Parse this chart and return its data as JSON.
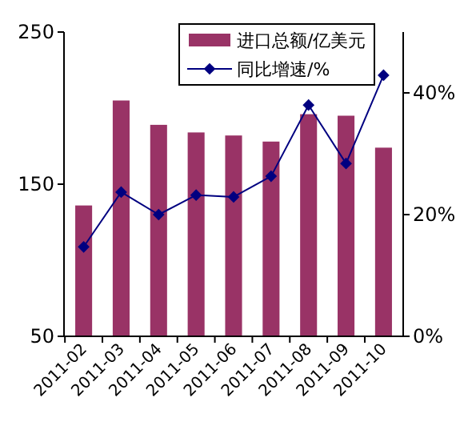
{
  "chart_data": {
    "type": "bar",
    "categories": [
      "2011-02",
      "2011-03",
      "2011-04",
      "2011-05",
      "2011-06",
      "2011-07",
      "2011-08",
      "2011-09",
      "2011-10"
    ],
    "series": [
      {
        "name": "进口总额/亿美元",
        "color": "#993366",
        "values": [
          136,
          205,
          189,
          184,
          182,
          178,
          196,
          195,
          174
        ]
      },
      {
        "name": "同比增速/%",
        "type": "line",
        "axis": "y2",
        "color": "#000080",
        "marker": "diamond",
        "values": [
          14.7,
          23.7,
          20,
          23.2,
          22.9,
          26.3,
          38,
          28.4,
          42.9
        ]
      }
    ],
    "ylim": [
      50,
      250
    ],
    "yticks": [
      50,
      150,
      250
    ],
    "y2lim": [
      0,
      50
    ],
    "y2ticks": [
      {
        "value": 0,
        "label": "0%"
      },
      {
        "value": 20,
        "label": "20%"
      },
      {
        "value": 40,
        "label": "40%"
      }
    ],
    "legend": "top right",
    "grid": false
  }
}
